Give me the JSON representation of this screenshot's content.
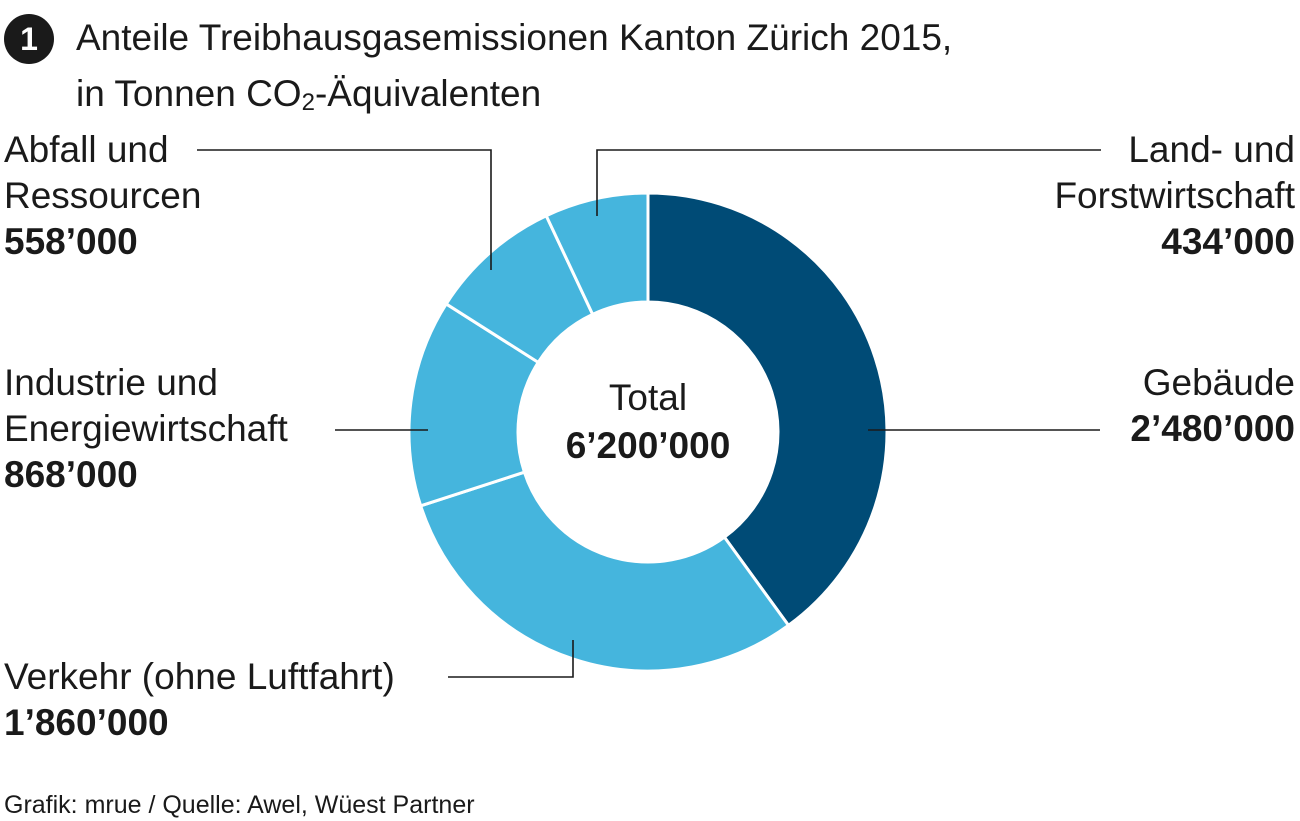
{
  "badge": "1",
  "title": {
    "line1": "Anteile Treibhausgasemissionen Kanton Zürich 2015,",
    "line2_pre": "in Tonnen CO",
    "line2_sub": "2",
    "line2_post": "-Äquivalenten"
  },
  "center": {
    "label": "Total",
    "value": "6’200’000"
  },
  "labels": {
    "gebaeude": {
      "line1": "Gebäude",
      "value": "2’480’000"
    },
    "verkehr": {
      "line1": "Verkehr (ohne Luftfahrt)",
      "value": "1’860’000"
    },
    "industrie": {
      "line1": "Industrie und",
      "line2": "Energiewirtschaft",
      "value": "868’000"
    },
    "abfall": {
      "line1": "Abfall und",
      "line2": "Ressourcen",
      "value": "558’000"
    },
    "land": {
      "line1": "Land- und",
      "line2": "Forstwirtschaft",
      "value": "434’000"
    }
  },
  "source": "Grafik: mrue / Quelle: Awel, Wüest Partner",
  "chart_data": {
    "type": "pie",
    "donut": true,
    "title": "Anteile Treibhausgasemissionen Kanton Zürich 2015, in Tonnen CO2-Äquivalenten",
    "total": 6200000,
    "series": [
      {
        "name": "Gebäude",
        "value": 2480000,
        "color": "#004b76"
      },
      {
        "name": "Verkehr (ohne Luftfahrt)",
        "value": 1860000,
        "color": "#45b5dd"
      },
      {
        "name": "Industrie und Energiewirtschaft",
        "value": 868000,
        "color": "#45b5dd"
      },
      {
        "name": "Abfall und Ressourcen",
        "value": 558000,
        "color": "#45b5dd"
      },
      {
        "name": "Land- und Forstwirtschaft",
        "value": 434000,
        "color": "#45b5dd"
      }
    ],
    "start_angle": "12 o'clock",
    "direction": "clockwise"
  }
}
